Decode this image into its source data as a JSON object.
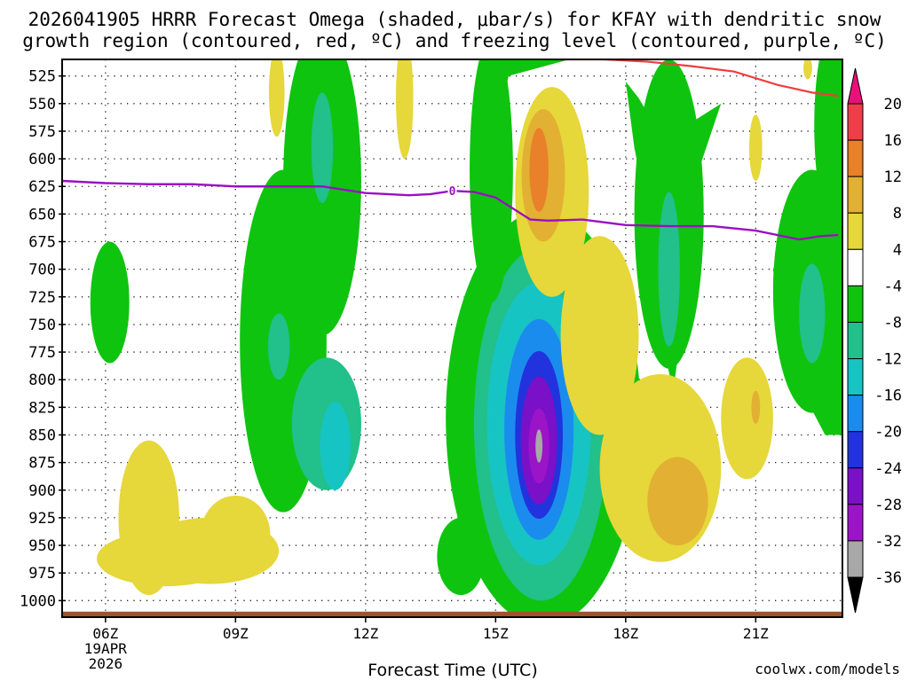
{
  "chart_data": {
    "type": "heatmap",
    "title_line1": "2026041905 HRRR Forecast Omega (shaded, μbar/s) for KFAY with dendritic snow",
    "title_line2": "growth region (contoured, red, ºC) and freezing level (contoured, purple, ºC)",
    "xlabel": "Forecast Time (UTC)",
    "ylabel": "",
    "credit": "coolwx.com/models",
    "x_ticks": [
      {
        "hour": 6,
        "label": "06Z"
      },
      {
        "hour": 9,
        "label": "09Z"
      },
      {
        "hour": 12,
        "label": "12Z"
      },
      {
        "hour": 15,
        "label": "15Z"
      },
      {
        "hour": 18,
        "label": "18Z"
      },
      {
        "hour": 21,
        "label": "21Z"
      }
    ],
    "date_label_1": "19APR",
    "date_label_2": "2026",
    "xlim": [
      5,
      23
    ],
    "ylim": [
      1015,
      510
    ],
    "y_ticks": [
      525,
      550,
      575,
      600,
      625,
      650,
      675,
      700,
      725,
      750,
      775,
      800,
      825,
      850,
      875,
      900,
      925,
      950,
      975,
      1000
    ],
    "colorbar": {
      "labels": [
        "20",
        "16",
        "12",
        "8",
        "4",
        "-4",
        "-8",
        "-12",
        "-16",
        "-20",
        "-24",
        "-28",
        "-32",
        "-36"
      ],
      "bins": [
        {
          "color": "#ee3e4a"
        },
        {
          "color": "#e9802a"
        },
        {
          "color": "#e2b032"
        },
        {
          "color": "#e6d73a"
        },
        {
          "color": "#ffffff"
        },
        {
          "color": "#0fc40f"
        },
        {
          "color": "#22c08a"
        },
        {
          "color": "#17c4c4"
        },
        {
          "color": "#1a8cee"
        },
        {
          "color": "#2233dd"
        },
        {
          "color": "#7a10c8"
        },
        {
          "color": "#9c14c8"
        },
        {
          "color": "#a8a8a8"
        }
      ],
      "top_color": "#e8107a",
      "bottom_color": "#000000"
    },
    "freezing_level": {
      "label": "0",
      "label_hour": 14,
      "color": "#9b0fc3",
      "points": [
        [
          5.0,
          620
        ],
        [
          6.0,
          622
        ],
        [
          7.0,
          623
        ],
        [
          8.0,
          623
        ],
        [
          9.0,
          625
        ],
        [
          10.0,
          625
        ],
        [
          11.0,
          625
        ],
        [
          12.0,
          631
        ],
        [
          13.0,
          633
        ],
        [
          13.5,
          632
        ],
        [
          14.0,
          629
        ],
        [
          14.5,
          630
        ],
        [
          15.0,
          635
        ],
        [
          15.8,
          655
        ],
        [
          16.2,
          656
        ],
        [
          17.0,
          655
        ],
        [
          18.0,
          660
        ],
        [
          19.0,
          661
        ],
        [
          20.0,
          661
        ],
        [
          21.0,
          665
        ],
        [
          22.0,
          673
        ],
        [
          22.5,
          670
        ],
        [
          22.9,
          669
        ]
      ]
    },
    "dgz": {
      "color": "#ee3e3e",
      "points": [
        [
          16.5,
          510
        ],
        [
          17.5,
          510
        ],
        [
          18.5,
          512
        ],
        [
          19.5,
          516
        ],
        [
          20.5,
          521
        ],
        [
          21.5,
          533
        ],
        [
          22.3,
          540
        ],
        [
          22.9,
          543
        ]
      ]
    },
    "terrain": {
      "color": "#a0522d",
      "pressure": 1010
    },
    "omega_features": [
      {
        "series": "omega_-6",
        "cx": 16.1,
        "cy": 835,
        "rx": 2.25,
        "ry": 188,
        "fill": "#0fc40f"
      },
      {
        "series": "omega_-10",
        "cx": 16.05,
        "cy": 840,
        "rx": 1.55,
        "ry": 160,
        "fill": "#22c08a"
      },
      {
        "series": "omega_-14",
        "cx": 16.0,
        "cy": 840,
        "rx": 1.2,
        "ry": 128,
        "fill": "#17c4c4"
      },
      {
        "series": "omega_-18",
        "cx": 16.0,
        "cy": 845,
        "rx": 0.8,
        "ry": 100,
        "fill": "#1a8cee"
      },
      {
        "series": "omega_-22",
        "cx": 16.0,
        "cy": 850,
        "rx": 0.55,
        "ry": 76,
        "fill": "#2233dd"
      },
      {
        "series": "omega_-26",
        "cx": 16.0,
        "cy": 855,
        "rx": 0.42,
        "ry": 58,
        "fill": "#7a10c8"
      },
      {
        "series": "omega_-30",
        "cx": 16.0,
        "cy": 860,
        "rx": 0.24,
        "ry": 34,
        "fill": "#9c14c8"
      },
      {
        "series": "omega_-34",
        "cx": 16.0,
        "cy": 860,
        "rx": 0.08,
        "ry": 15,
        "fill": "#a8a8a8"
      },
      {
        "series": "omega_-6",
        "cx": 14.2,
        "cy": 960,
        "rx": 0.55,
        "ry": 35,
        "fill": "#0fc40f"
      },
      {
        "series": "omega_-6",
        "cx": 6.1,
        "cy": 730,
        "rx": 0.45,
        "ry": 55,
        "fill": "#0fc40f"
      },
      {
        "series": "omega_-6",
        "cx": 10.1,
        "cy": 765,
        "rx": 1.0,
        "ry": 155,
        "fill": "#0fc40f"
      },
      {
        "series": "omega_-10",
        "cx": 11.1,
        "cy": 840,
        "rx": 0.8,
        "ry": 60,
        "fill": "#22c08a"
      },
      {
        "series": "omega_-14",
        "cx": 11.3,
        "cy": 860,
        "rx": 0.35,
        "ry": 40,
        "fill": "#17c4c4"
      },
      {
        "series": "omega_-10",
        "cx": 10.0,
        "cy": 770,
        "rx": 0.25,
        "ry": 30,
        "fill": "#22c08a"
      },
      {
        "series": "omega_-6",
        "cx": 11.0,
        "cy": 620,
        "rx": 0.9,
        "ry": 140,
        "fill": "#0fc40f"
      },
      {
        "series": "omega_-10",
        "cx": 11.0,
        "cy": 590,
        "rx": 0.25,
        "ry": 50,
        "fill": "#22c08a"
      },
      {
        "series": "omega_-6",
        "cx": 14.9,
        "cy": 610,
        "rx": 0.5,
        "ry": 120,
        "fill": "#0fc40f"
      },
      {
        "series": "omega_-6",
        "cx": 19.0,
        "cy": 650,
        "rx": 0.8,
        "ry": 140,
        "fill": "#0fc40f"
      },
      {
        "series": "omega_-10",
        "cx": 19.0,
        "cy": 700,
        "rx": 0.25,
        "ry": 70,
        "fill": "#22c08a"
      },
      {
        "series": "omega_-6",
        "cx": 22.3,
        "cy": 720,
        "rx": 0.9,
        "ry": 110,
        "fill": "#0fc40f"
      },
      {
        "series": "omega_-10",
        "cx": 22.3,
        "cy": 740,
        "rx": 0.3,
        "ry": 45,
        "fill": "#22c08a"
      },
      {
        "series": "omega_-6",
        "cx": 22.7,
        "cy": 570,
        "rx": 0.35,
        "ry": 80,
        "fill": "#0fc40f"
      },
      {
        "series": "omega_+6",
        "cx": 16.3,
        "cy": 630,
        "rx": 0.85,
        "ry": 95,
        "fill": "#e6d73a"
      },
      {
        "series": "omega_+6",
        "cx": 17.4,
        "cy": 760,
        "rx": 0.9,
        "ry": 90,
        "fill": "#e6d73a"
      },
      {
        "series": "omega_+6",
        "cx": 18.8,
        "cy": 880,
        "rx": 1.4,
        "ry": 85,
        "fill": "#e6d73a"
      },
      {
        "series": "omega_+10",
        "cx": 16.1,
        "cy": 615,
        "rx": 0.5,
        "ry": 60,
        "fill": "#e2b032"
      },
      {
        "series": "omega_+14",
        "cx": 16.0,
        "cy": 610,
        "rx": 0.22,
        "ry": 38,
        "fill": "#e9802a"
      },
      {
        "series": "omega_+10",
        "cx": 19.2,
        "cy": 910,
        "rx": 0.7,
        "ry": 40,
        "fill": "#e2b032"
      },
      {
        "series": "omega_+6",
        "cx": 20.8,
        "cy": 835,
        "rx": 0.6,
        "ry": 55,
        "fill": "#e6d73a"
      },
      {
        "series": "omega_+10",
        "cx": 21.0,
        "cy": 825,
        "rx": 0.1,
        "ry": 15,
        "fill": "#e2b032"
      },
      {
        "series": "omega_+6",
        "cx": 8.4,
        "cy": 955,
        "rx": 1.6,
        "ry": 30,
        "fill": "#e6d73a"
      },
      {
        "series": "omega_+6",
        "cx": 7.0,
        "cy": 925,
        "rx": 0.7,
        "ry": 70,
        "fill": "#e6d73a"
      },
      {
        "series": "omega_+6",
        "cx": 7.4,
        "cy": 962,
        "rx": 1.6,
        "ry": 25,
        "fill": "#e6d73a"
      },
      {
        "series": "omega_+6",
        "cx": 9.0,
        "cy": 940,
        "rx": 0.8,
        "ry": 35,
        "fill": "#e6d73a"
      },
      {
        "series": "omega_+6",
        "cx": 9.95,
        "cy": 540,
        "rx": 0.18,
        "ry": 40,
        "fill": "#e6d73a"
      },
      {
        "series": "omega_+6",
        "cx": 12.9,
        "cy": 545,
        "rx": 0.2,
        "ry": 55,
        "fill": "#e6d73a"
      },
      {
        "series": "omega_+6",
        "cx": 21.0,
        "cy": 590,
        "rx": 0.15,
        "ry": 30,
        "fill": "#e6d73a"
      },
      {
        "series": "omega_+6",
        "cx": 22.2,
        "cy": 518,
        "rx": 0.1,
        "ry": 10,
        "fill": "#e6d73a"
      }
    ],
    "omega_polygons": [
      {
        "series": "omega_-6",
        "fill": "#0fc40f",
        "points": [
          [
            14.85,
            510
          ],
          [
            16.7,
            510
          ],
          [
            15.3,
            525
          ],
          [
            15.1,
            560
          ],
          [
            14.9,
            640
          ],
          [
            14.75,
            690
          ],
          [
            14.7,
            620
          ],
          [
            14.75,
            530
          ]
        ]
      },
      {
        "series": "omega_-6",
        "fill": "#0fc40f",
        "points": [
          [
            18.0,
            530
          ],
          [
            18.3,
            545
          ],
          [
            18.6,
            565
          ],
          [
            19.2,
            575
          ],
          [
            19.8,
            560
          ],
          [
            20.2,
            550
          ],
          [
            19.6,
            620
          ],
          [
            19.4,
            720
          ],
          [
            19.1,
            810
          ],
          [
            18.8,
            760
          ],
          [
            18.5,
            650
          ],
          [
            18.2,
            590
          ]
        ]
      },
      {
        "series": "omega_-6",
        "fill": "#0fc40f",
        "points": [
          [
            22.9,
            510
          ],
          [
            23.0,
            510
          ],
          [
            23.0,
            850
          ],
          [
            22.6,
            850
          ],
          [
            22.2,
            820
          ],
          [
            21.6,
            760
          ],
          [
            21.4,
            700
          ],
          [
            21.9,
            665
          ],
          [
            22.4,
            640
          ],
          [
            22.75,
            600
          ],
          [
            22.85,
            550
          ]
        ]
      }
    ]
  }
}
